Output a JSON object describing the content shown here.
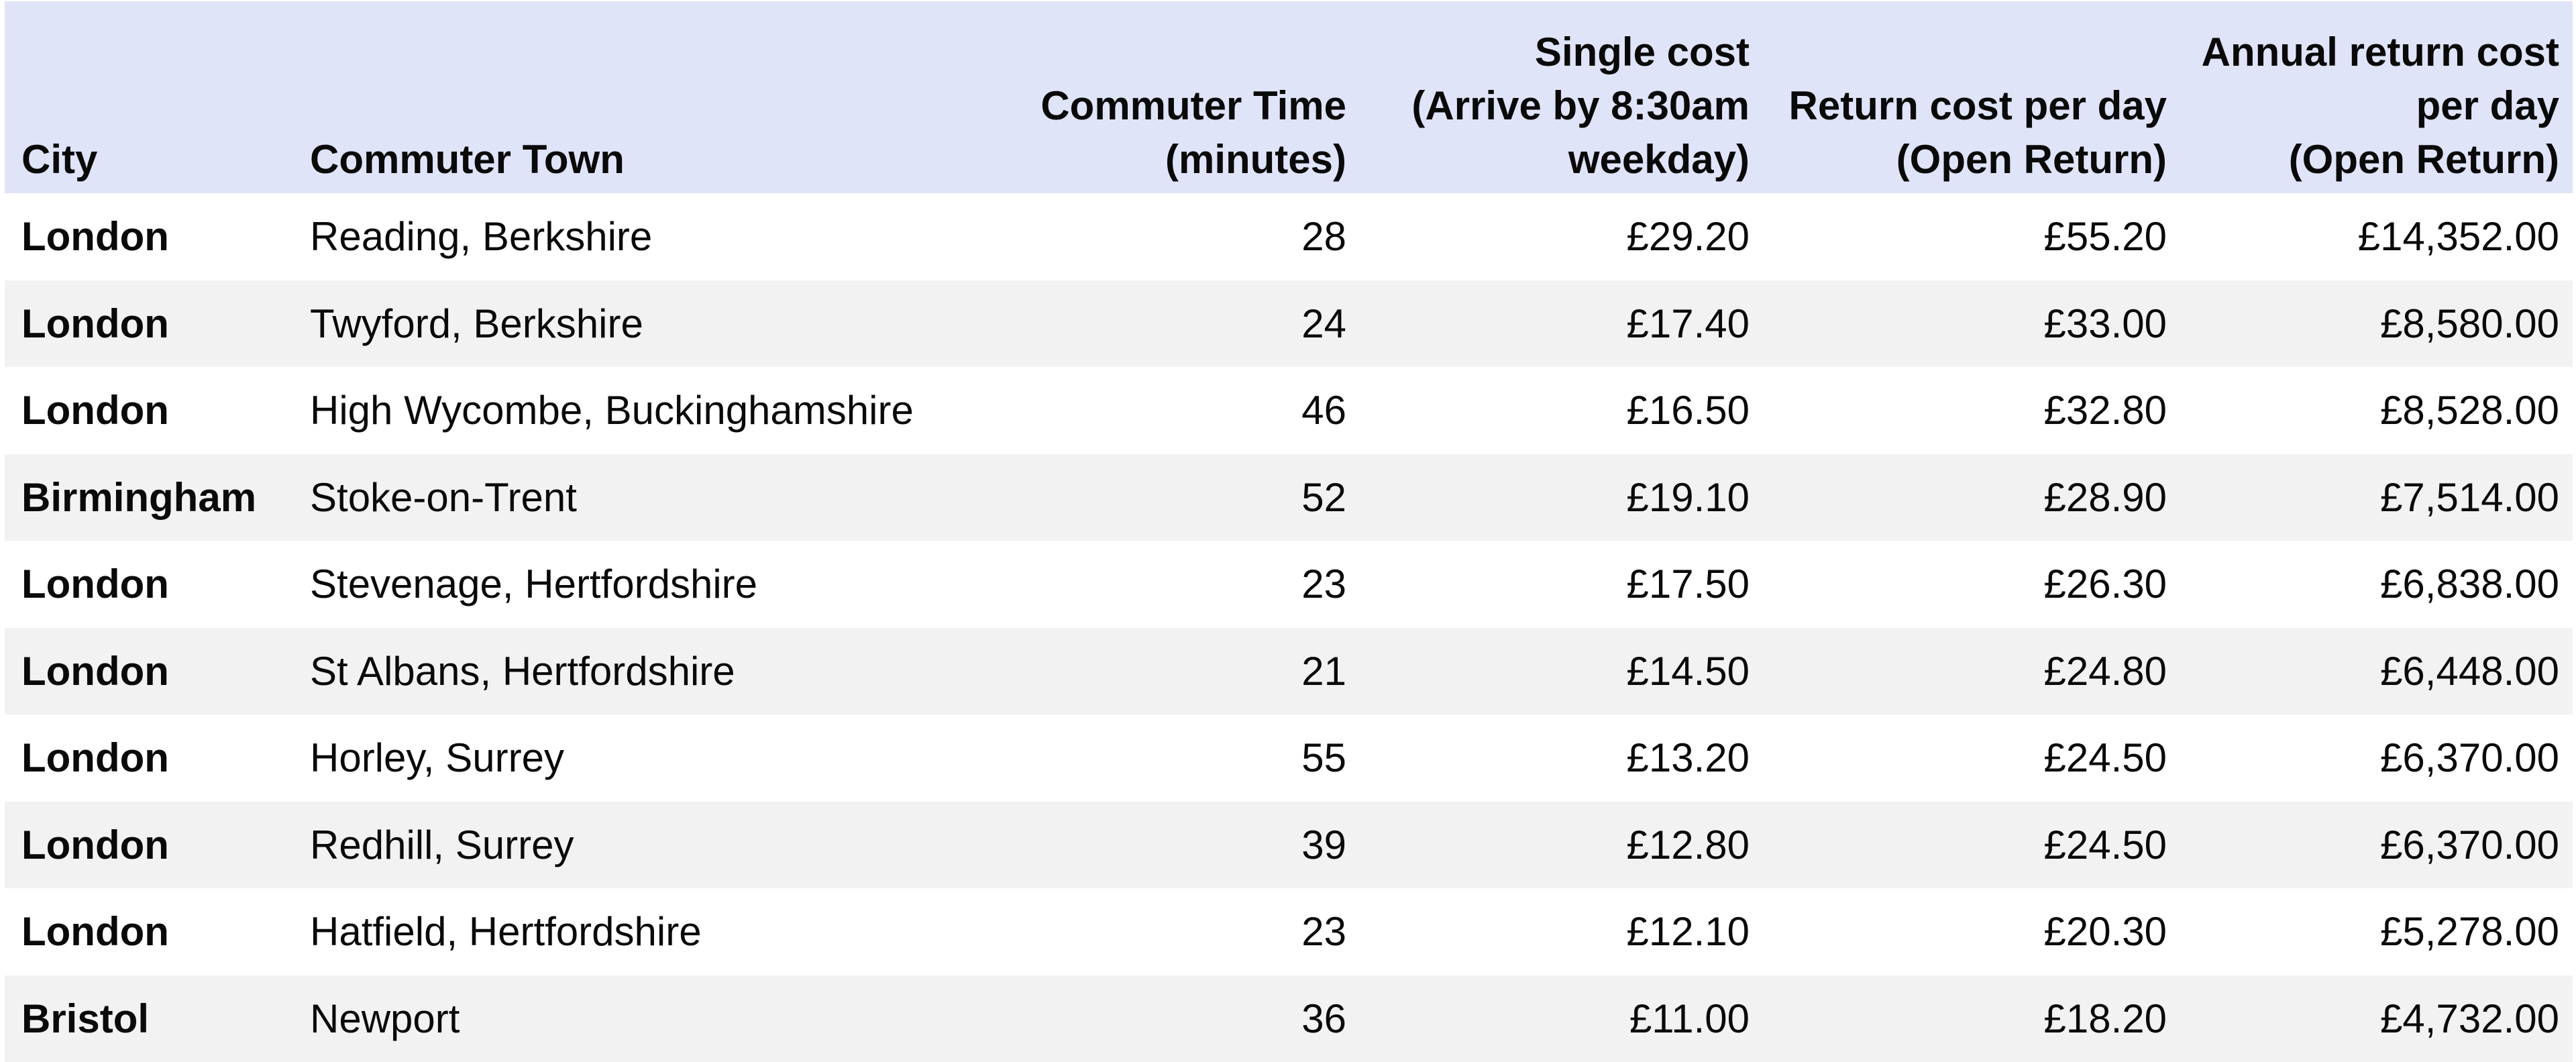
{
  "colors": {
    "page_background": "#ffffff",
    "header_background": "#dfe4f8",
    "stripe_background": "#f2f2f2",
    "text": "#0a0a0a"
  },
  "chart_data": {
    "type": "table",
    "title": "",
    "columns": [
      {
        "label": "City",
        "align": "left",
        "lines": [
          "City"
        ]
      },
      {
        "label": "Commuter Town",
        "align": "left",
        "lines": [
          "Commuter Town"
        ]
      },
      {
        "label": "Commuter Time (minutes)",
        "align": "right",
        "lines": [
          "Commuter Time",
          "(minutes)"
        ]
      },
      {
        "label": "Single cost (Arrive by 8:30am weekday)",
        "align": "right",
        "lines": [
          "Single cost",
          "(Arrive by 8:30am",
          "weekday)"
        ]
      },
      {
        "label": "Return cost per day (Open Return)",
        "align": "right",
        "lines": [
          "Return cost per day",
          "(Open Return)"
        ]
      },
      {
        "label": "Annual return cost per day (Open Return)",
        "align": "right",
        "lines": [
          "Annual return cost",
          "per day",
          "(Open Return)"
        ]
      }
    ],
    "rows": [
      {
        "city": "London",
        "town": "Reading, Berkshire",
        "time": "28",
        "single": "£29.20",
        "return_cost": "£55.20",
        "annual": "£14,352.00"
      },
      {
        "city": "London",
        "town": "Twyford, Berkshire",
        "time": "24",
        "single": "£17.40",
        "return_cost": "£33.00",
        "annual": "£8,580.00"
      },
      {
        "city": "London",
        "town": "High Wycombe, Buckinghamshire",
        "time": "46",
        "single": "£16.50",
        "return_cost": "£32.80",
        "annual": "£8,528.00"
      },
      {
        "city": "Birmingham",
        "town": "Stoke-on-Trent",
        "time": "52",
        "single": "£19.10",
        "return_cost": "£28.90",
        "annual": "£7,514.00"
      },
      {
        "city": "London",
        "town": "Stevenage, Hertfordshire",
        "time": "23",
        "single": "£17.50",
        "return_cost": "£26.30",
        "annual": "£6,838.00"
      },
      {
        "city": "London",
        "town": "St Albans, Hertfordshire",
        "time": "21",
        "single": "£14.50",
        "return_cost": "£24.80",
        "annual": "£6,448.00"
      },
      {
        "city": "London",
        "town": "Horley, Surrey",
        "time": "55",
        "single": "£13.20",
        "return_cost": "£24.50",
        "annual": "£6,370.00"
      },
      {
        "city": "London",
        "town": "Redhill, Surrey",
        "time": "39",
        "single": "£12.80",
        "return_cost": "£24.50",
        "annual": "£6,370.00"
      },
      {
        "city": "London",
        "town": "Hatfield, Hertfordshire",
        "time": "23",
        "single": "£12.10",
        "return_cost": "£20.30",
        "annual": "£5,278.00"
      },
      {
        "city": "Bristol",
        "town": "Newport",
        "time": "36",
        "single": "£11.00",
        "return_cost": "£18.20",
        "annual": "£4,732.00"
      }
    ]
  }
}
